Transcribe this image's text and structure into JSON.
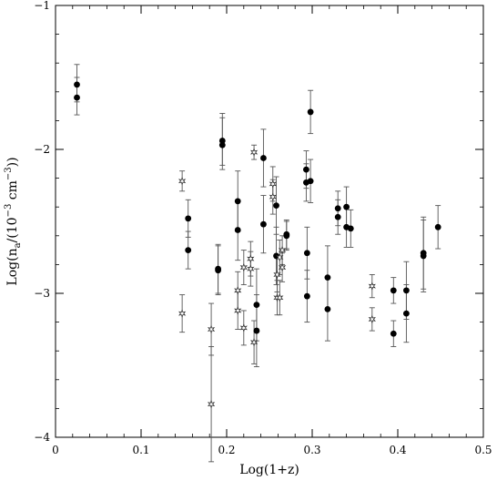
{
  "chart_data": {
    "type": "scatter",
    "xlabel": "Log(1+z)",
    "ylabel_parts": {
      "base": "Log(n",
      "sub": "a",
      "mid": "/(10",
      "sup1": "−3",
      "unit": " cm",
      "sup2": "−3",
      "end": "))"
    },
    "xlim": [
      0,
      0.5
    ],
    "ylim": [
      -4,
      -1
    ],
    "x_ticks": [
      "0",
      "0.1",
      "0.2",
      "0.3",
      "0.4",
      "0.5"
    ],
    "y_ticks": [
      "−4",
      "−3",
      "−2",
      "−1"
    ],
    "grid": false,
    "series": [
      {
        "marker": "filled-circle",
        "points": [
          {
            "x": 0.025,
            "y": -1.55,
            "lo": 0.12,
            "hi": 0.14
          },
          {
            "x": 0.025,
            "y": -1.64,
            "lo": 0.12,
            "hi": 0.14
          },
          {
            "x": 0.155,
            "y": -2.48,
            "lo": 0.13,
            "hi": 0.13
          },
          {
            "x": 0.155,
            "y": -2.7,
            "lo": 0.13,
            "hi": 0.13
          },
          {
            "x": 0.19,
            "y": -2.83,
            "lo": 0.17,
            "hi": 0.17
          },
          {
            "x": 0.19,
            "y": -2.84,
            "lo": 0.17,
            "hi": 0.17
          },
          {
            "x": 0.195,
            "y": -1.94,
            "lo": 0.17,
            "hi": 0.19
          },
          {
            "x": 0.195,
            "y": -1.97,
            "lo": 0.17,
            "hi": 0.19
          },
          {
            "x": 0.213,
            "y": -2.36,
            "lo": 0.21,
            "hi": 0.21
          },
          {
            "x": 0.213,
            "y": -2.56,
            "lo": 0.21,
            "hi": 0.21
          },
          {
            "x": 0.235,
            "y": -3.08,
            "lo": 0.25,
            "hi": 0.25
          },
          {
            "x": 0.235,
            "y": -3.26,
            "lo": 0.25,
            "hi": 0.25
          },
          {
            "x": 0.243,
            "y": -2.06,
            "lo": 0.2,
            "hi": 0.2
          },
          {
            "x": 0.243,
            "y": -2.52,
            "lo": 0.2,
            "hi": 0.2
          },
          {
            "x": 0.258,
            "y": -2.39,
            "lo": 0.2,
            "hi": 0.2
          },
          {
            "x": 0.258,
            "y": -2.74,
            "lo": 0.2,
            "hi": 0.2
          },
          {
            "x": 0.27,
            "y": -2.59,
            "lo": 0.1,
            "hi": 0.1
          },
          {
            "x": 0.27,
            "y": -2.6,
            "lo": 0.1,
            "hi": 0.1
          },
          {
            "x": 0.293,
            "y": -2.14,
            "lo": 0.13,
            "hi": 0.13
          },
          {
            "x": 0.293,
            "y": -2.23,
            "lo": 0.13,
            "hi": 0.13
          },
          {
            "x": 0.294,
            "y": -2.72,
            "lo": 0.18,
            "hi": 0.18
          },
          {
            "x": 0.294,
            "y": -3.02,
            "lo": 0.18,
            "hi": 0.18
          },
          {
            "x": 0.298,
            "y": -1.74,
            "lo": 0.15,
            "hi": 0.15
          },
          {
            "x": 0.298,
            "y": -2.22,
            "lo": 0.15,
            "hi": 0.15
          },
          {
            "x": 0.318,
            "y": -2.89,
            "lo": 0.22,
            "hi": 0.22
          },
          {
            "x": 0.318,
            "y": -3.11,
            "lo": 0.22,
            "hi": 0.22
          },
          {
            "x": 0.33,
            "y": -2.41,
            "lo": 0.12,
            "hi": 0.12
          },
          {
            "x": 0.33,
            "y": -2.47,
            "lo": 0.12,
            "hi": 0.12
          },
          {
            "x": 0.34,
            "y": -2.4,
            "lo": 0.14,
            "hi": 0.14
          },
          {
            "x": 0.34,
            "y": -2.54,
            "lo": 0.14,
            "hi": 0.14
          },
          {
            "x": 0.345,
            "y": -2.55,
            "lo": 0.13,
            "hi": 0.13
          },
          {
            "x": 0.395,
            "y": -2.98,
            "lo": 0.09,
            "hi": 0.09
          },
          {
            "x": 0.395,
            "y": -3.28,
            "lo": 0.09,
            "hi": 0.09
          },
          {
            "x": 0.41,
            "y": -2.98,
            "lo": 0.2,
            "hi": 0.2
          },
          {
            "x": 0.41,
            "y": -3.14,
            "lo": 0.2,
            "hi": 0.2
          },
          {
            "x": 0.43,
            "y": -2.72,
            "lo": 0.25,
            "hi": 0.25
          },
          {
            "x": 0.43,
            "y": -2.74,
            "lo": 0.25,
            "hi": 0.25
          },
          {
            "x": 0.447,
            "y": -2.54,
            "lo": 0.15,
            "hi": 0.15
          }
        ]
      },
      {
        "marker": "open-star",
        "points": [
          {
            "x": 0.148,
            "y": -2.22,
            "lo": 0.07,
            "hi": 0.07
          },
          {
            "x": 0.148,
            "y": -3.14,
            "lo": 0.13,
            "hi": 0.13
          },
          {
            "x": 0.182,
            "y": -3.25,
            "lo": 0.18,
            "hi": 0.18
          },
          {
            "x": 0.182,
            "y": -3.77,
            "lo": 0.4,
            "hi": 0.4
          },
          {
            "x": 0.213,
            "y": -2.98,
            "lo": 0.13,
            "hi": 0.13
          },
          {
            "x": 0.213,
            "y": -3.12,
            "lo": 0.13,
            "hi": 0.13
          },
          {
            "x": 0.22,
            "y": -2.82,
            "lo": 0.12,
            "hi": 0.12
          },
          {
            "x": 0.22,
            "y": -3.24,
            "lo": 0.12,
            "hi": 0.12
          },
          {
            "x": 0.228,
            "y": -2.76,
            "lo": 0.12,
            "hi": 0.12
          },
          {
            "x": 0.228,
            "y": -2.83,
            "lo": 0.12,
            "hi": 0.12
          },
          {
            "x": 0.232,
            "y": -2.02,
            "lo": 0.05,
            "hi": 0.05
          },
          {
            "x": 0.232,
            "y": -3.34,
            "lo": 0.15,
            "hi": 0.15
          },
          {
            "x": 0.254,
            "y": -2.24,
            "lo": 0.12,
            "hi": 0.12
          },
          {
            "x": 0.254,
            "y": -2.33,
            "lo": 0.12,
            "hi": 0.12
          },
          {
            "x": 0.259,
            "y": -2.87,
            "lo": 0.12,
            "hi": 0.12
          },
          {
            "x": 0.259,
            "y": -3.03,
            "lo": 0.12,
            "hi": 0.12
          },
          {
            "x": 0.262,
            "y": -2.75,
            "lo": 0.12,
            "hi": 0.12
          },
          {
            "x": 0.262,
            "y": -3.03,
            "lo": 0.12,
            "hi": 0.12
          },
          {
            "x": 0.265,
            "y": -2.7,
            "lo": 0.1,
            "hi": 0.1
          },
          {
            "x": 0.265,
            "y": -2.82,
            "lo": 0.1,
            "hi": 0.1
          },
          {
            "x": 0.37,
            "y": -2.95,
            "lo": 0.08,
            "hi": 0.08
          },
          {
            "x": 0.37,
            "y": -3.18,
            "lo": 0.08,
            "hi": 0.08
          }
        ]
      }
    ]
  }
}
